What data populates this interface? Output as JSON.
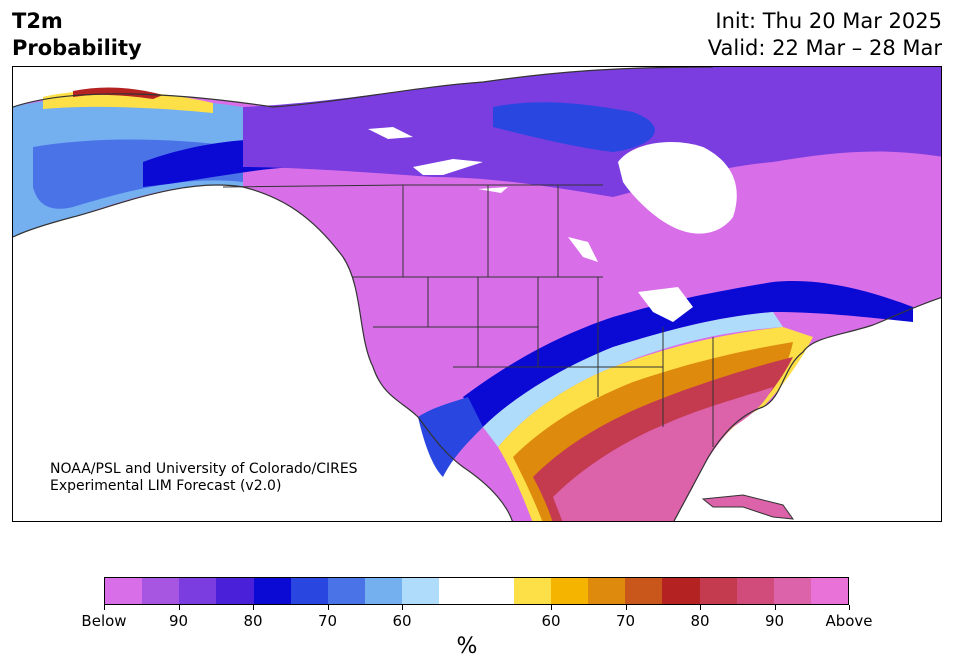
{
  "header": {
    "title_line1": "T2m",
    "title_line2": "Probability",
    "init": "Init: Thu 20 Mar 2025",
    "valid": "Valid: 22 Mar – 28 Mar"
  },
  "map": {
    "credit_line1": "NOAA/PSL and University of Colorado/CIRES",
    "credit_line2": "Experimental LIM Forecast (v2.0)"
  },
  "colorbar": {
    "unit": "%",
    "colors": [
      "#d86fe8",
      "#a656e0",
      "#7b3de0",
      "#4a20d8",
      "#0a0ad4",
      "#2a46e0",
      "#4a73e8",
      "#74aff0",
      "#aedcfa",
      "#ffffff",
      "#ffffff",
      "#fde047",
      "#f4b400",
      "#de8a0c",
      "#c9561a",
      "#b42222",
      "#c43a4e",
      "#d14c7a",
      "#dc62aa",
      "#e872d8"
    ],
    "tick_labels": [
      "Below",
      "90",
      "80",
      "70",
      "60",
      "60",
      "70",
      "80",
      "90",
      "Above"
    ]
  }
}
